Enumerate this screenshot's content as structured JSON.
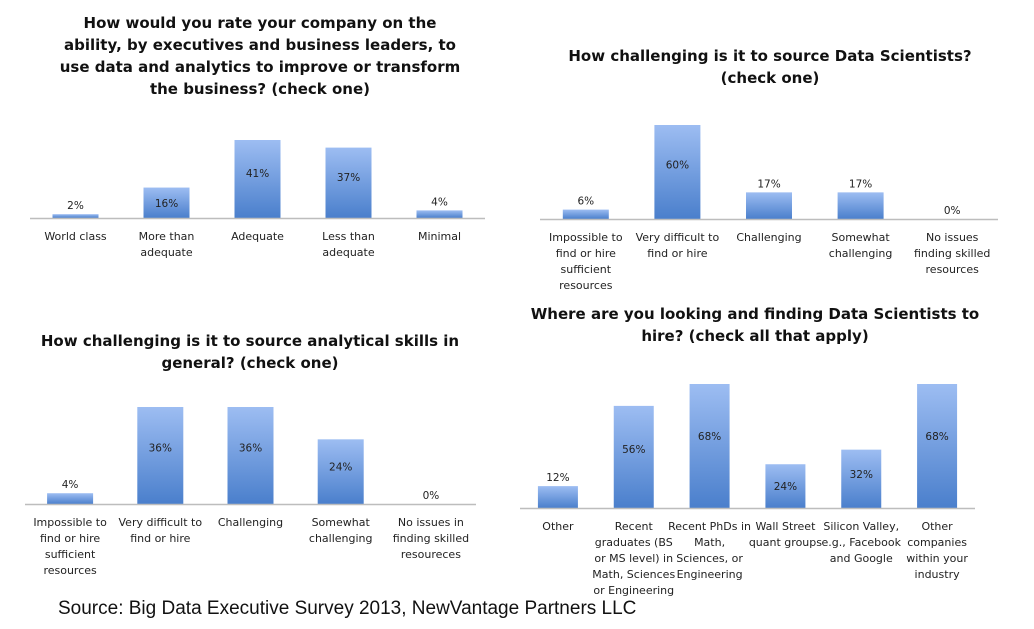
{
  "source": "Source:  Big Data Executive Survey 2013, NewVantage Partners LLC",
  "colors": {
    "bar_top": "#9dbdf2",
    "bar_bottom": "#4a7fcc",
    "axis": "#bdbdbd"
  },
  "chart_data": [
    {
      "type": "bar",
      "title": "How would you rate your company on the\nability, by executives and business leaders, to\nuse data and analytics to improve or transform\nthe business? (check one)",
      "categories": [
        "World class",
        "More than\nadequate",
        "Adequate",
        "Less than\nadequate",
        "Minimal"
      ],
      "values": [
        2,
        16,
        41,
        37,
        4
      ],
      "data_labels": [
        "2%",
        "16%",
        "41%",
        "37%",
        "4%"
      ],
      "xlabel": "",
      "ylabel": "",
      "ylim": [
        0,
        41
      ],
      "grid": false,
      "legend": "none"
    },
    {
      "type": "bar",
      "title": "How challenging is it to source Data Scientists?\n(check one)",
      "categories": [
        "Impossible to\nfind or hire\nsufficient\nresources",
        "Very difficult to\nfind or hire",
        "Challenging",
        "Somewhat\nchallenging",
        "No issues\nfinding skilled\nresources"
      ],
      "values": [
        6,
        60,
        17,
        17,
        0
      ],
      "data_labels": [
        "6%",
        "60%",
        "17%",
        "17%",
        "0%"
      ],
      "xlabel": "",
      "ylabel": "",
      "ylim": [
        0,
        60
      ],
      "grid": false,
      "legend": "none"
    },
    {
      "type": "bar",
      "title": "How challenging is it to source analytical skills in\ngeneral? (check one)",
      "categories": [
        "Impossible to\nfind or hire\nsufficient\nresources",
        "Very difficult to\nfind or hire",
        "Challenging",
        "Somewhat\nchallenging",
        "No issues in\nfinding skilled\nresoureces"
      ],
      "values": [
        4,
        36,
        36,
        24,
        0
      ],
      "data_labels": [
        "4%",
        "36%",
        "36%",
        "24%",
        "0%"
      ],
      "xlabel": "",
      "ylabel": "",
      "ylim": [
        0,
        36
      ],
      "grid": false,
      "legend": "none"
    },
    {
      "type": "bar",
      "title": "Where are you looking and finding Data Scientists to\nhire? (check all that apply)",
      "categories": [
        "Other",
        "Recent\ngraduates (BS\nor MS level) in\nMath, Sciences\nor Engineering",
        "Recent PhDs in\nMath,\nSciences, or\nEngineering",
        "Wall Street\nquant groups",
        "Silicon Valley,\ne.g., Facebook\nand Google",
        "Other\ncompanies\nwithin your\nindustry"
      ],
      "values": [
        12,
        56,
        68,
        24,
        32,
        68
      ],
      "data_labels": [
        "12%",
        "56%",
        "68%",
        "24%",
        "32%",
        "68%"
      ],
      "xlabel": "",
      "ylabel": "",
      "ylim": [
        0,
        68
      ],
      "grid": false,
      "legend": "none"
    }
  ]
}
